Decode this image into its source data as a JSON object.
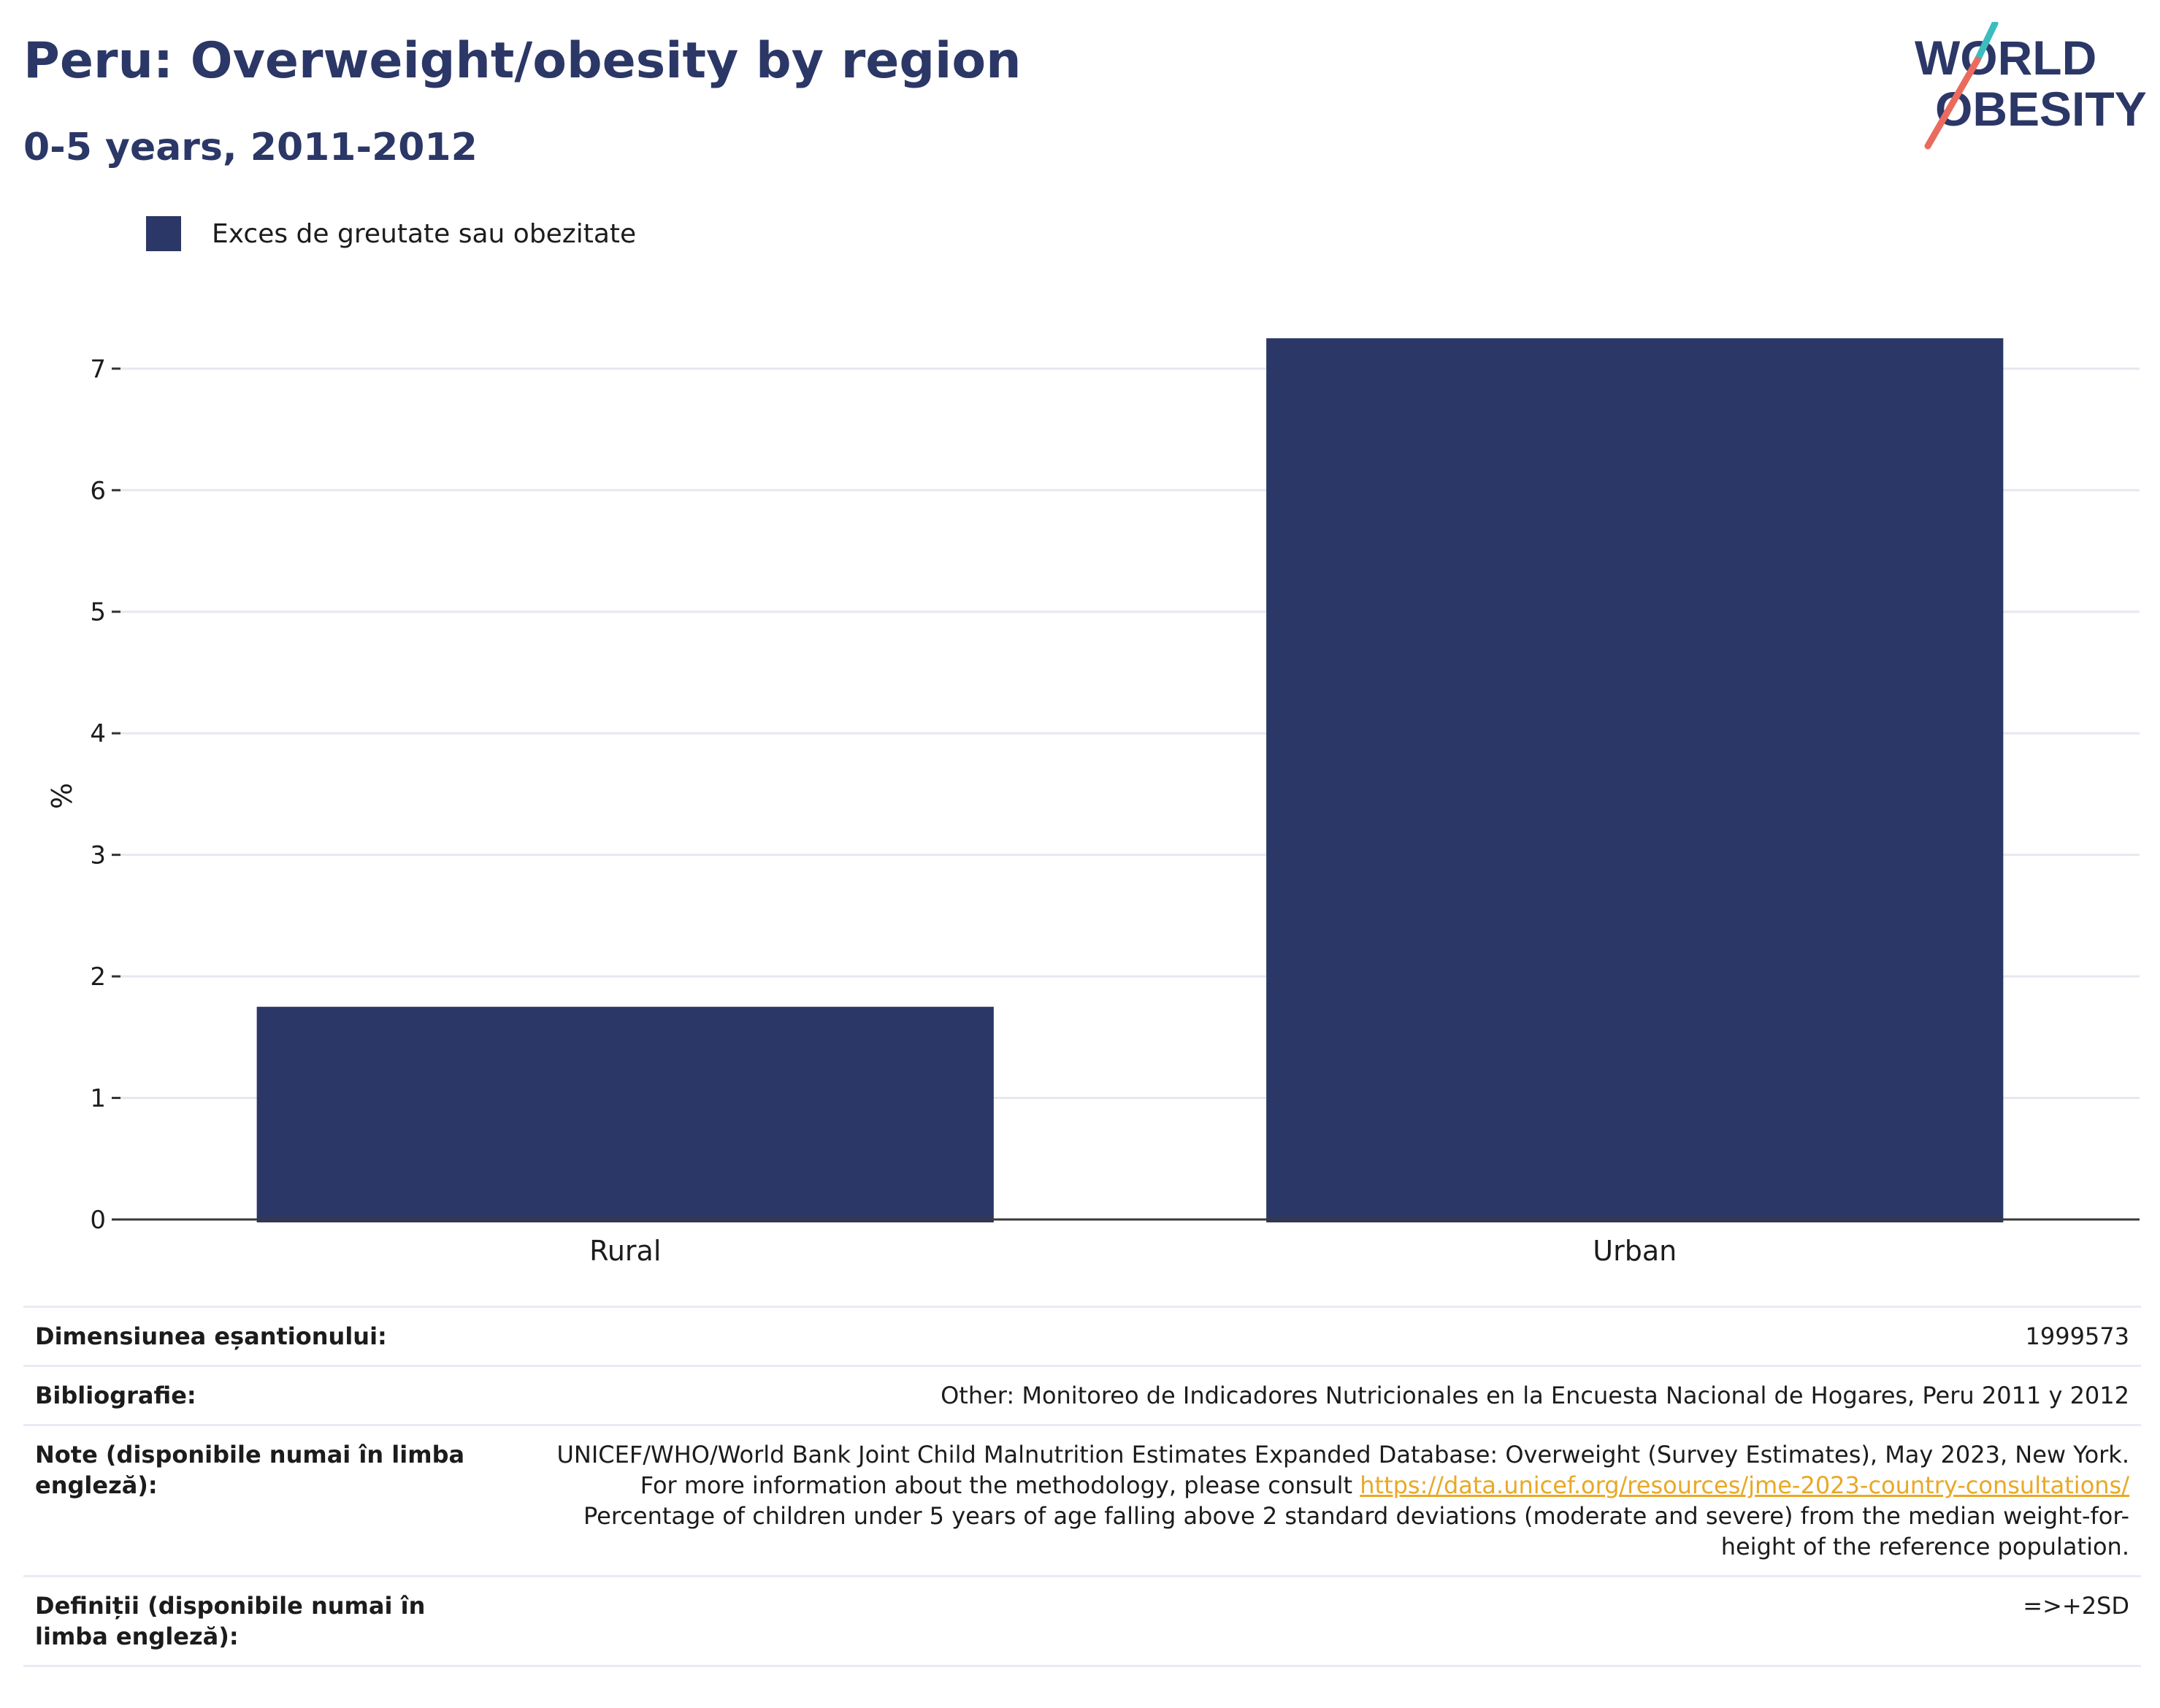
{
  "header": {
    "title": "Peru: Overweight/obesity by region",
    "subtitle": "0-5 years, 2011-2012"
  },
  "logo": {
    "line1": "WORLD",
    "line2": "OBESITY",
    "colors": {
      "navy": "#2b3766",
      "teal": "#3bbdc0",
      "coral": "#ea6b5d"
    }
  },
  "legend": {
    "label": "Exces de greutate sau obezitate",
    "color": "#2b3766"
  },
  "chart_data": {
    "type": "bar",
    "categories": [
      "Rural",
      "Urban"
    ],
    "series": [
      {
        "name": "Exces de greutate sau obezitate",
        "values": [
          1.75,
          7.25
        ],
        "color": "#2b3766"
      }
    ],
    "ylabel": "%",
    "yticks": [
      "0",
      "1",
      "2",
      "3",
      "4",
      "5",
      "6",
      "7"
    ],
    "ylim": [
      0,
      7.75
    ],
    "grid": true
  },
  "info": {
    "sample_size": {
      "label": "Dimensiunea eșantionului:",
      "value": "1999573"
    },
    "bibliography": {
      "label": "Bibliografie:",
      "value": "Other: Monitoreo de Indicadores Nutricionales en la Encuesta Nacional de Hogares, Peru 2011 y 2012"
    },
    "notes": {
      "label": "Note (disponibile numai în limba engleză):",
      "text_before": "UNICEF/WHO/World Bank Joint Child Malnutrition Estimates Expanded Database: Overweight (Survey Estimates), May 2023, New York. For more information about the methodology, please consult ",
      "link": "https://data.unicef.org/resources/jme-2023-country-consultations/",
      "text_after": " Percentage of children under 5 years of age falling above 2 standard deviations (moderate and severe) from the median weight-for-height of the reference population."
    },
    "definitions": {
      "label": "Definiții (disponibile numai în limba engleză):",
      "value": "=>+2SD"
    }
  }
}
